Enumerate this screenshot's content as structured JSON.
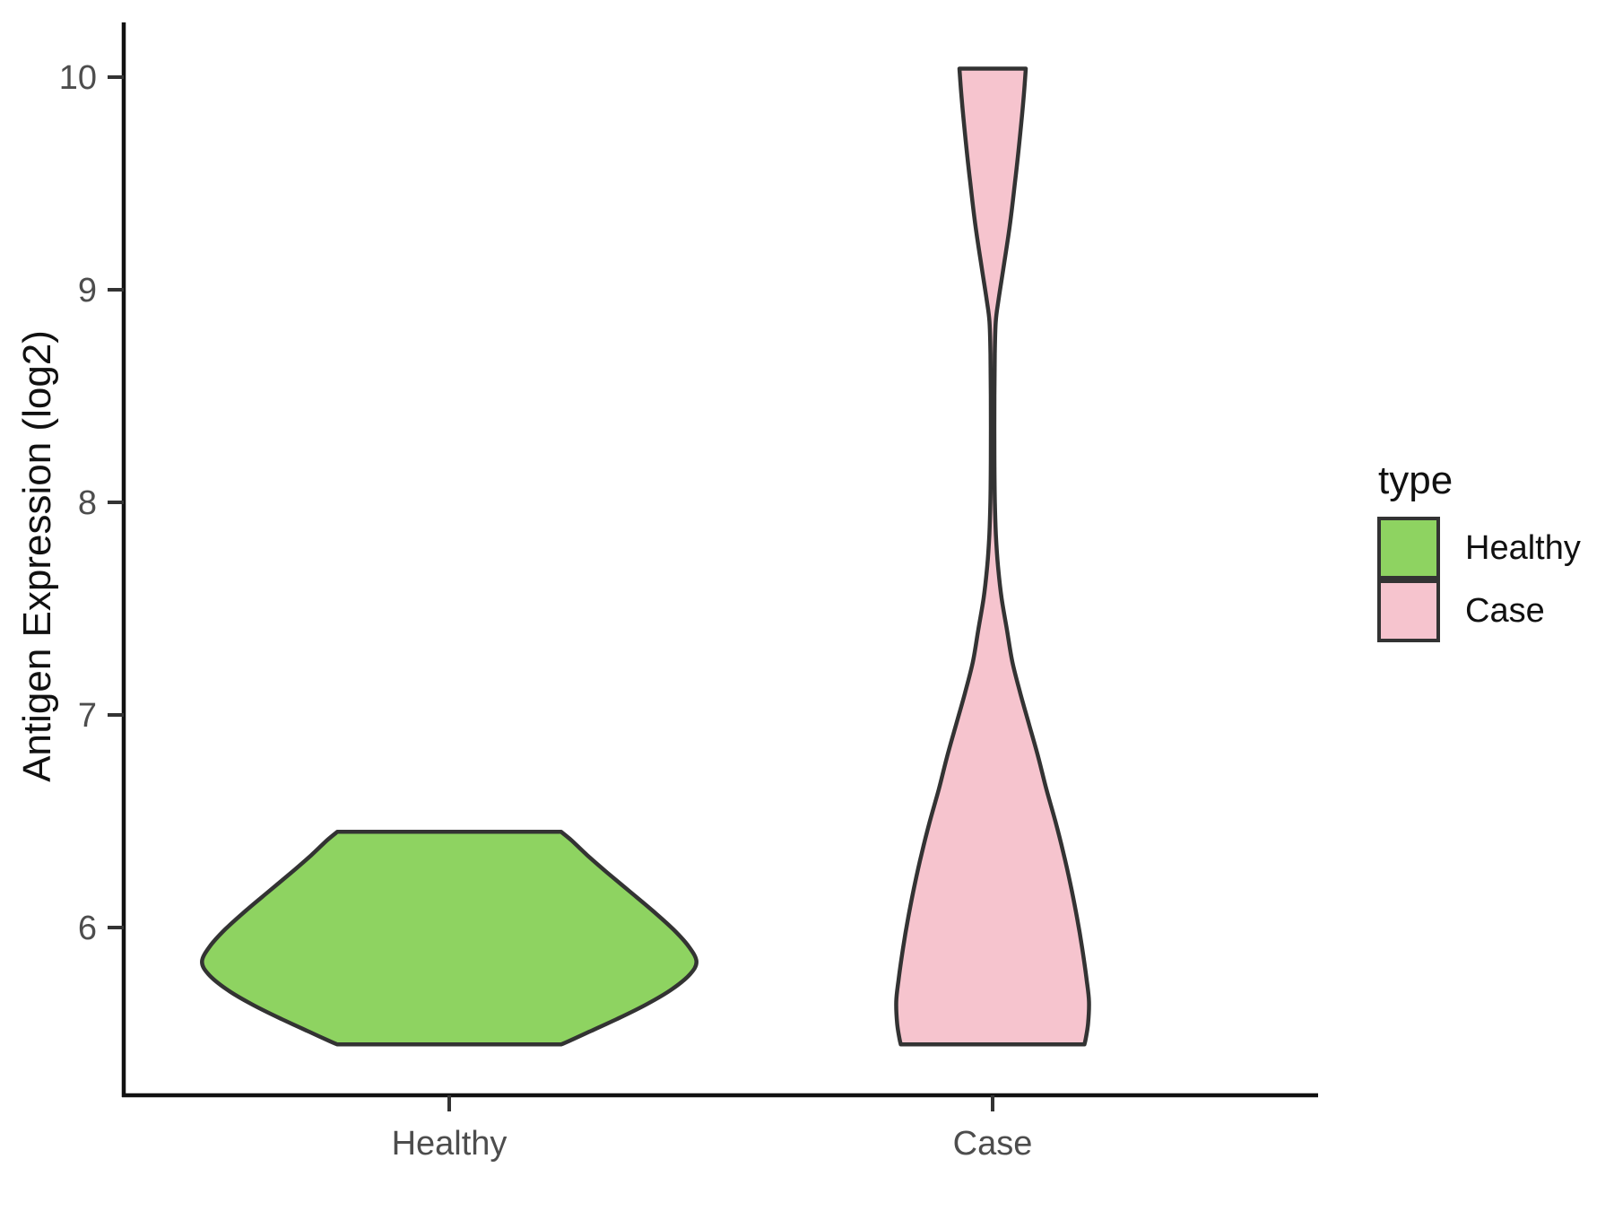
{
  "chart_data": {
    "type": "violin",
    "title": "",
    "xlabel": "",
    "ylabel": "Antigen Expression (log2)",
    "categories": [
      "Healthy",
      "Case"
    ],
    "y_axis": {
      "ticks": [
        10,
        9,
        8,
        7,
        6
      ],
      "range_shown": [
        5.2,
        10.26
      ],
      "grid": "off"
    },
    "legend": {
      "title": "type",
      "position": "right",
      "entries": [
        {
          "label": "Healthy",
          "color": "#8ed361"
        },
        {
          "label": "Case",
          "color": "#f6c4ce"
        }
      ]
    },
    "style": {
      "outline_color": "#333333",
      "outline_width": 4.5,
      "axis_line_color": "#111111",
      "tick_mark_color": "#333333",
      "tick_label_color": "#4d4d4d",
      "background": "#ffffff"
    },
    "series": [
      {
        "name": "Healthy",
        "category": "Healthy",
        "fill": "#8ed361",
        "min": 5.45,
        "max": 6.45,
        "peak_density_at": 5.84,
        "profile": [
          [
            6.45,
            0.206
          ],
          [
            6.41,
            0.225
          ],
          [
            6.34,
            0.254
          ],
          [
            6.26,
            0.29
          ],
          [
            6.17,
            0.332
          ],
          [
            6.08,
            0.374
          ],
          [
            5.99,
            0.413
          ],
          [
            5.91,
            0.441
          ],
          [
            5.84,
            0.455
          ],
          [
            5.78,
            0.443
          ],
          [
            5.71,
            0.41
          ],
          [
            5.64,
            0.364
          ],
          [
            5.57,
            0.309
          ],
          [
            5.51,
            0.258
          ],
          [
            5.47,
            0.224
          ],
          [
            5.45,
            0.206
          ]
        ]
      },
      {
        "name": "Case",
        "category": "Case",
        "fill": "#f6c4ce",
        "min": 5.45,
        "max": 10.04,
        "peak_density_at": 5.65,
        "profile": [
          [
            10.04,
            0.061
          ],
          [
            9.9,
            0.057
          ],
          [
            9.7,
            0.0495
          ],
          [
            9.5,
            0.041
          ],
          [
            9.3,
            0.0316
          ],
          [
            9.1,
            0.0198
          ],
          [
            8.95,
            0.0107
          ],
          [
            8.85,
            0.0058
          ],
          [
            8.7,
            0.004
          ],
          [
            8.5,
            0.0033
          ],
          [
            8.2,
            0.0033
          ],
          [
            8.0,
            0.0041
          ],
          [
            7.85,
            0.006
          ],
          [
            7.7,
            0.0099
          ],
          [
            7.55,
            0.0165
          ],
          [
            7.4,
            0.0264
          ],
          [
            7.25,
            0.0363
          ],
          [
            7.1,
            0.0512
          ],
          [
            6.95,
            0.0677
          ],
          [
            6.8,
            0.0842
          ],
          [
            6.65,
            0.099
          ],
          [
            6.5,
            0.1155
          ],
          [
            6.35,
            0.1304
          ],
          [
            6.2,
            0.1436
          ],
          [
            6.05,
            0.1551
          ],
          [
            5.9,
            0.165
          ],
          [
            5.75,
            0.1733
          ],
          [
            5.65,
            0.1774
          ],
          [
            5.55,
            0.1757
          ],
          [
            5.48,
            0.1716
          ],
          [
            5.45,
            0.169
          ]
        ]
      }
    ]
  }
}
